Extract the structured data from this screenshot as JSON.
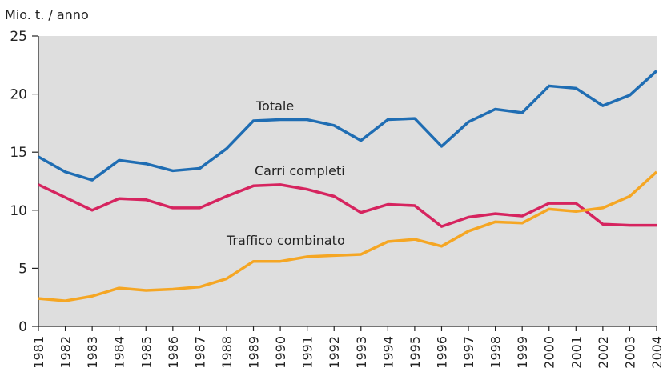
{
  "chart_data": {
    "type": "line",
    "y_label": "Mio. t. / anno",
    "categories": [
      "1981",
      "1982",
      "1983",
      "1984",
      "1985",
      "1986",
      "1987",
      "1988",
      "1989",
      "1990",
      "1991",
      "1992",
      "1993",
      "1994",
      "1995",
      "1996",
      "1997",
      "1998",
      "1999",
      "2000",
      "2001",
      "2002",
      "2003",
      "2004"
    ],
    "series": [
      {
        "name": "Totale",
        "color": "#1f6db3",
        "values": [
          14.6,
          13.3,
          12.6,
          14.3,
          14.0,
          13.4,
          13.6,
          15.3,
          17.7,
          17.8,
          17.8,
          17.3,
          16.0,
          17.8,
          17.9,
          15.5,
          17.6,
          18.7,
          18.4,
          20.7,
          20.5,
          19.0,
          19.9,
          22.0
        ]
      },
      {
        "name": "Carri completi",
        "color": "#d6245f",
        "values": [
          12.2,
          11.1,
          10.0,
          11.0,
          10.9,
          10.2,
          10.2,
          11.2,
          12.1,
          12.2,
          11.8,
          11.2,
          9.8,
          10.5,
          10.4,
          8.6,
          9.4,
          9.7,
          9.5,
          10.6,
          10.6,
          8.8,
          8.7,
          8.7
        ]
      },
      {
        "name": "Traffico combinato",
        "color": "#f5a623",
        "values": [
          2.4,
          2.2,
          2.6,
          3.3,
          3.1,
          3.2,
          3.4,
          4.1,
          5.6,
          5.6,
          6.0,
          6.1,
          6.2,
          7.3,
          7.5,
          6.9,
          8.2,
          9.0,
          8.9,
          10.1,
          9.9,
          10.2,
          11.2,
          13.3
        ]
      }
    ],
    "ylim": [
      0,
      25
    ],
    "yticks": [
      0,
      5,
      10,
      15,
      20,
      25
    ]
  }
}
